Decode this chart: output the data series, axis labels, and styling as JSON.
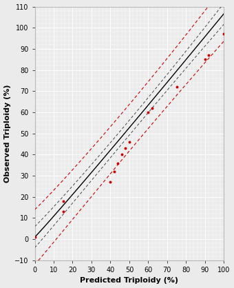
{
  "title": "",
  "xlabel": "Predicted Triploidy (%)",
  "ylabel": "Observed Triploidy (%)",
  "xlim": [
    0,
    100
  ],
  "ylim": [
    -10,
    110
  ],
  "xticks": [
    0,
    10,
    20,
    30,
    40,
    50,
    60,
    70,
    80,
    90,
    100
  ],
  "yticks": [
    -10,
    0,
    10,
    20,
    30,
    40,
    50,
    60,
    70,
    80,
    90,
    100,
    110
  ],
  "data_points_x": [
    0,
    15,
    15,
    40,
    42,
    44,
    46,
    48,
    50,
    60,
    62,
    75,
    90,
    92,
    100
  ],
  "data_points_y": [
    1,
    13,
    18,
    27,
    32,
    36,
    40,
    43,
    46,
    60,
    62,
    72,
    85,
    87,
    97
  ],
  "fit_color": "#000000",
  "ci_color": "#444444",
  "pi_color": "#cc0000",
  "point_color": "#cc0000",
  "bg_color": "#ebebeb",
  "grid_color": "#ffffff",
  "xlabel_fontsize": 8,
  "ylabel_fontsize": 8,
  "tick_fontsize": 7
}
